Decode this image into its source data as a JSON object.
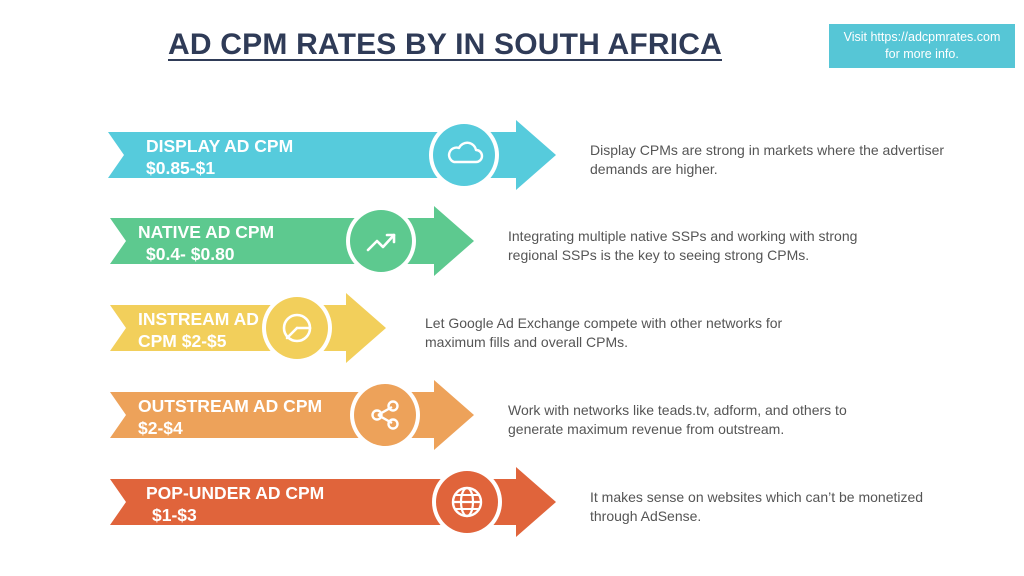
{
  "title": "AD CPM RATES BY IN SOUTH AFRICA",
  "visit": {
    "line1": "Visit https://adcpmrates.com",
    "line2": "for more info."
  },
  "rows": [
    {
      "name_line": "DISPLAY AD CPM",
      "rate_line": "$0.85-$1",
      "icon": "cloud-icon",
      "color": "#56cbdc",
      "desc_line1": "Display CPMs are strong in markets where the advertiser",
      "desc_line2": "demands are higher."
    },
    {
      "name_line": "NATIVE AD CPM",
      "rate_line": "$0.4- $0.80",
      "icon": "trending-up-icon",
      "color": "#5dc98f",
      "desc_line1": "Integrating multiple native SSPs and working with strong",
      "desc_line2": "regional SSPs is the key to seeing strong CPMs."
    },
    {
      "name_line": "INSTREAM AD",
      "rate_line": "CPM  $2-$5",
      "icon": "pie-chart-icon",
      "color": "#f2cf5b",
      "desc_line1": "Let Google Ad Exchange compete with other networks for",
      "desc_line2": "maximum fills and overall CPMs."
    },
    {
      "name_line": "OUTSTREAM AD CPM",
      "rate_line": "$2-$4",
      "icon": "share-icon",
      "color": "#eda25a",
      "desc_line1": "Work with networks like teads.tv, adform, and others to",
      "desc_line2": "generate maximum revenue from outstream."
    },
    {
      "name_line": "POP-UNDER AD CPM",
      "rate_line": "$1-$3",
      "icon": "globe-icon",
      "color": "#e0643b",
      "desc_line1": "It makes sense on websites which can’t be monetized",
      "desc_line2": "through AdSense."
    }
  ]
}
